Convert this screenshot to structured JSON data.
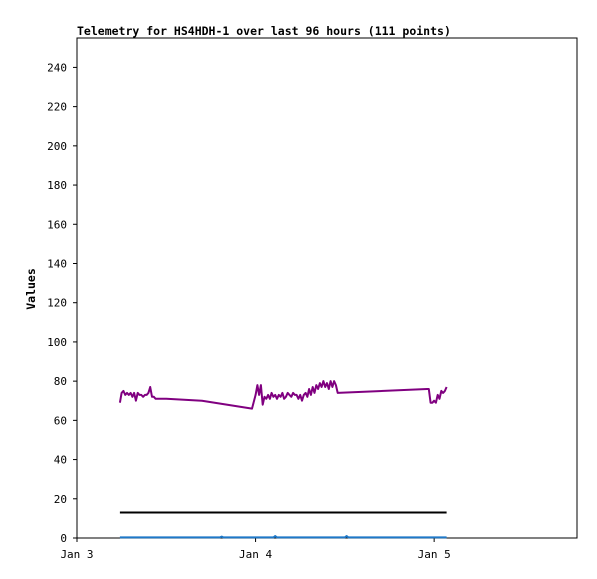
{
  "chart_data": {
    "type": "line",
    "title": "Telemetry for HS4HDH-1 over last 96 hours (111 points)",
    "xlabel": "",
    "ylabel": "Values",
    "ylim": [
      0,
      255
    ],
    "xlim": [
      0,
      2.8
    ],
    "yticks": [
      0,
      20,
      40,
      60,
      80,
      100,
      120,
      140,
      160,
      180,
      200,
      220,
      240
    ],
    "xticks": [
      {
        "value": 0,
        "label": "Jan 3"
      },
      {
        "value": 1,
        "label": "Jan 4"
      },
      {
        "value": 2,
        "label": "Jan 5"
      }
    ],
    "grid": false,
    "legend": "none",
    "series": [
      {
        "color": "#800080",
        "x": [
          0.24,
          0.25,
          0.26,
          0.27,
          0.28,
          0.29,
          0.3,
          0.31,
          0.32,
          0.33,
          0.34,
          0.35,
          0.36,
          0.37,
          0.38,
          0.39,
          0.4,
          0.41,
          0.42,
          0.43,
          0.44,
          0.45,
          0.46,
          0.5,
          0.7,
          0.98,
          1.0,
          1.01,
          1.02,
          1.03,
          1.04,
          1.05,
          1.06,
          1.07,
          1.08,
          1.09,
          1.1,
          1.11,
          1.12,
          1.13,
          1.14,
          1.15,
          1.16,
          1.17,
          1.18,
          1.19,
          1.2,
          1.21,
          1.22,
          1.23,
          1.24,
          1.25,
          1.26,
          1.27,
          1.28,
          1.29,
          1.3,
          1.31,
          1.32,
          1.33,
          1.34,
          1.35,
          1.36,
          1.37,
          1.38,
          1.39,
          1.4,
          1.41,
          1.42,
          1.43,
          1.44,
          1.45,
          1.46,
          1.96,
          1.97,
          1.98,
          1.99,
          2.0,
          2.01,
          2.02,
          2.03,
          2.04,
          2.05,
          2.06,
          2.07
        ],
        "values": [
          69,
          74,
          75,
          73,
          74,
          73,
          74,
          72,
          74,
          70,
          74,
          73,
          73,
          72,
          73,
          73,
          74,
          77,
          72,
          72,
          71,
          71,
          71,
          71,
          70,
          66,
          73,
          78,
          73,
          78,
          68,
          72,
          71,
          73,
          71,
          74,
          72,
          73,
          71,
          73,
          72,
          74,
          71,
          72,
          74,
          73,
          72,
          74,
          73,
          73,
          71,
          73,
          70,
          73,
          74,
          72,
          76,
          73,
          77,
          74,
          78,
          76,
          79,
          77,
          80,
          77,
          79,
          76,
          80,
          77,
          80,
          78,
          74,
          76,
          76,
          69,
          69,
          70,
          69,
          73,
          71,
          75,
          74,
          75,
          77
        ]
      },
      {
        "color": "#000000",
        "x": [
          0.24,
          2.07
        ],
        "values": [
          13,
          13
        ]
      },
      {
        "color": "#1e78c8",
        "x": [
          0.24,
          0.8,
          0.81,
          0.82,
          1.1,
          1.11,
          1.12,
          1.5,
          1.51,
          1.52,
          2.07
        ],
        "values": [
          0.3,
          0.3,
          0.7,
          0.3,
          0.3,
          1,
          0.3,
          0.3,
          1,
          0.3,
          0.3
        ]
      }
    ]
  }
}
